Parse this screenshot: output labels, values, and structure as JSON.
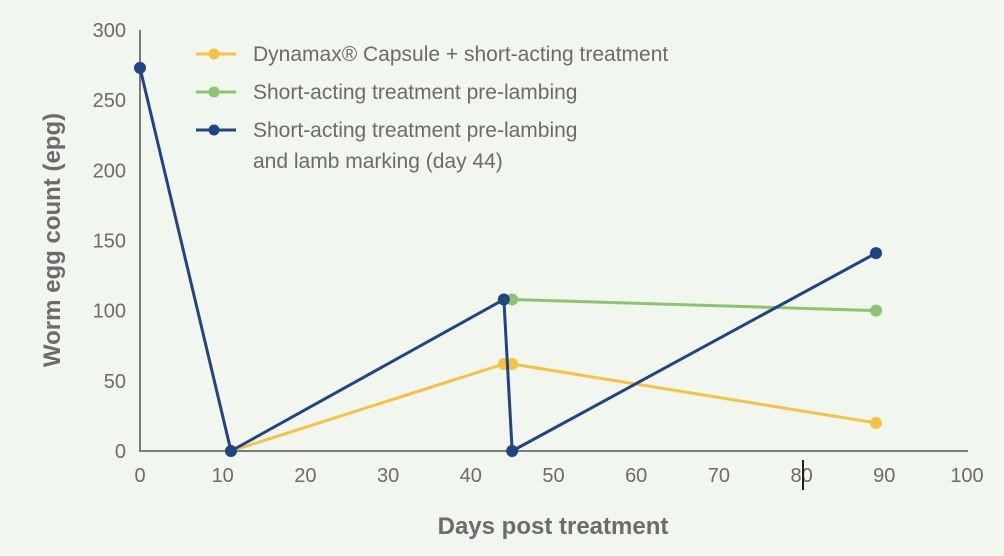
{
  "chart_data": {
    "type": "line",
    "title": "",
    "xlabel": "Days post treatment",
    "ylabel": "Worm egg count (epg)",
    "xlim": [
      0,
      100
    ],
    "ylim": [
      0,
      300
    ],
    "xticks": [
      0,
      10,
      20,
      30,
      40,
      50,
      60,
      70,
      80,
      90,
      100
    ],
    "yticks": [
      0,
      50,
      100,
      150,
      200,
      250,
      300
    ],
    "grid": false,
    "legend_position": "top-left (inside plot)",
    "series": [
      {
        "name": "Dynamax® Capsule + short-acting treatment",
        "color": "#f5c242",
        "points": [
          [
            11,
            0
          ],
          [
            44,
            62
          ],
          [
            45,
            62
          ],
          [
            89,
            20
          ]
        ]
      },
      {
        "name": "Short-acting treatment pre-lambing",
        "color": "#8dc46e",
        "points": [
          [
            44,
            108
          ],
          [
            45,
            108
          ],
          [
            89,
            100
          ]
        ]
      },
      {
        "name": "Short-acting treatment pre-lambing and lamb marking (day 44)",
        "legend_lines": [
          "Short-acting treatment pre-lambing",
          "and lamb marking (day 44)"
        ],
        "color": "#1f4585",
        "points": [
          [
            0,
            273
          ],
          [
            11,
            0
          ],
          [
            44,
            108
          ],
          [
            45,
            0
          ],
          [
            89,
            141
          ]
        ]
      }
    ]
  },
  "axis_color": "#7a7a7a",
  "text_color": "#6b6b6b"
}
